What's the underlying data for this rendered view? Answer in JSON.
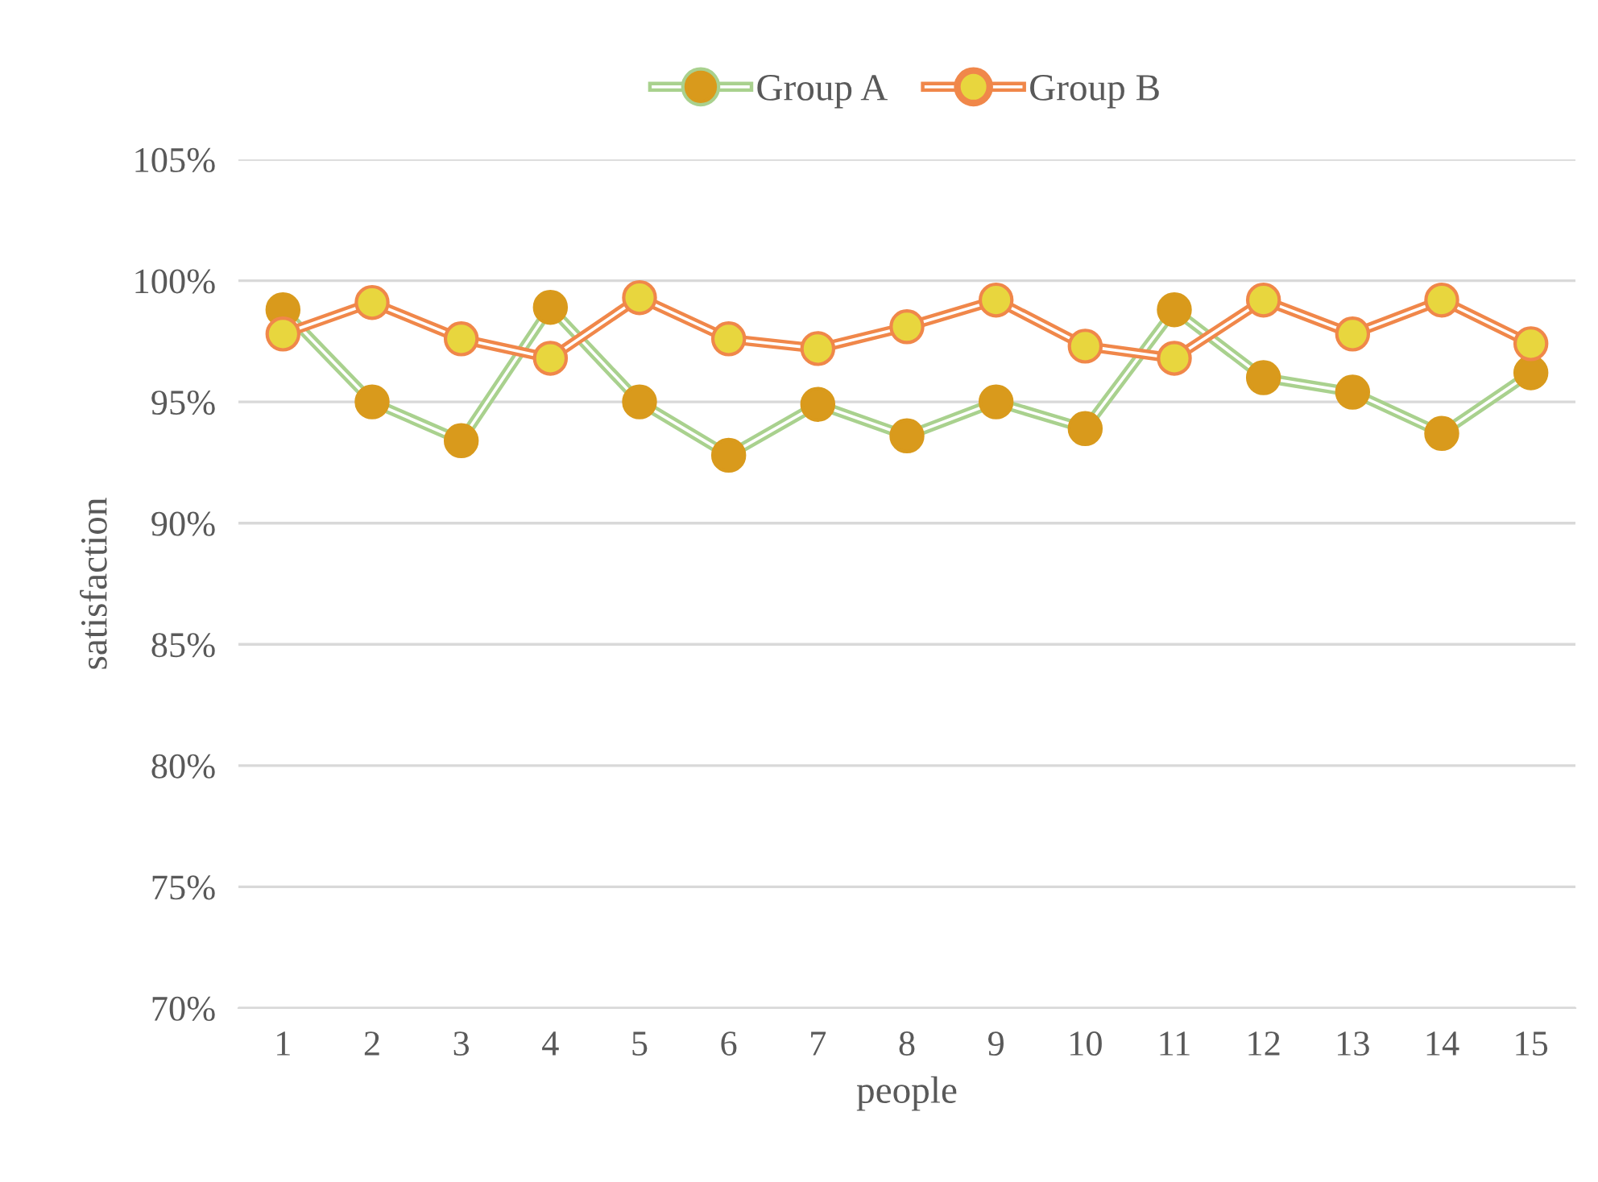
{
  "chart_data": {
    "type": "line",
    "xlabel": "people",
    "ylabel": "satisfaction",
    "categories": [
      "1",
      "2",
      "3",
      "4",
      "5",
      "6",
      "7",
      "8",
      "9",
      "10",
      "11",
      "12",
      "13",
      "14",
      "15"
    ],
    "series": [
      {
        "name": "Group A",
        "color": "#a9d18e",
        "colors": [
          "#d99a1c",
          "#d99a1c",
          "#d99a1c",
          "#d99a1c",
          "#d99a1c",
          "#d99a1c",
          "#d99a1c",
          "#d99a1c",
          "#d99a1c",
          "#d99a1c",
          "#d99a1c",
          "#d99a1c",
          "#d99a1c",
          "#d99a1c",
          "#d99a1c"
        ],
        "values": [
          98.8,
          95.0,
          93.4,
          98.9,
          95.0,
          92.8,
          94.9,
          93.6,
          95.0,
          93.9,
          98.8,
          96.0,
          95.4,
          93.7,
          96.2
        ]
      },
      {
        "name": "Group B",
        "color": "#f0874a",
        "colors": [
          "#e8d63e",
          "#e8d63e",
          "#e8d63e",
          "#e8d63e",
          "#e8d63e",
          "#e8d63e",
          "#e8d63e",
          "#e8d63e",
          "#e8d63e",
          "#e8d63e",
          "#e8d63e",
          "#e8d63e",
          "#e8d63e",
          "#e8d63e",
          "#e8d63e"
        ],
        "values": [
          97.8,
          99.1,
          97.6,
          96.8,
          99.3,
          97.6,
          97.2,
          98.1,
          99.2,
          97.3,
          96.8,
          99.2,
          97.8,
          99.2,
          97.4
        ]
      }
    ],
    "ylim": [
      70,
      105
    ],
    "yticks": [
      {
        "value": 70,
        "label": "70%"
      },
      {
        "value": 75,
        "label": "75%"
      },
      {
        "value": 80,
        "label": "80%"
      },
      {
        "value": 85,
        "label": "85%"
      },
      {
        "value": 90,
        "label": "90%"
      },
      {
        "value": 95,
        "label": "95%"
      },
      {
        "value": 100,
        "label": "100%"
      },
      {
        "value": 105,
        "label": "105%"
      }
    ],
    "grid": "y",
    "legend": "top",
    "marker": "circle",
    "line_style": "solid"
  }
}
